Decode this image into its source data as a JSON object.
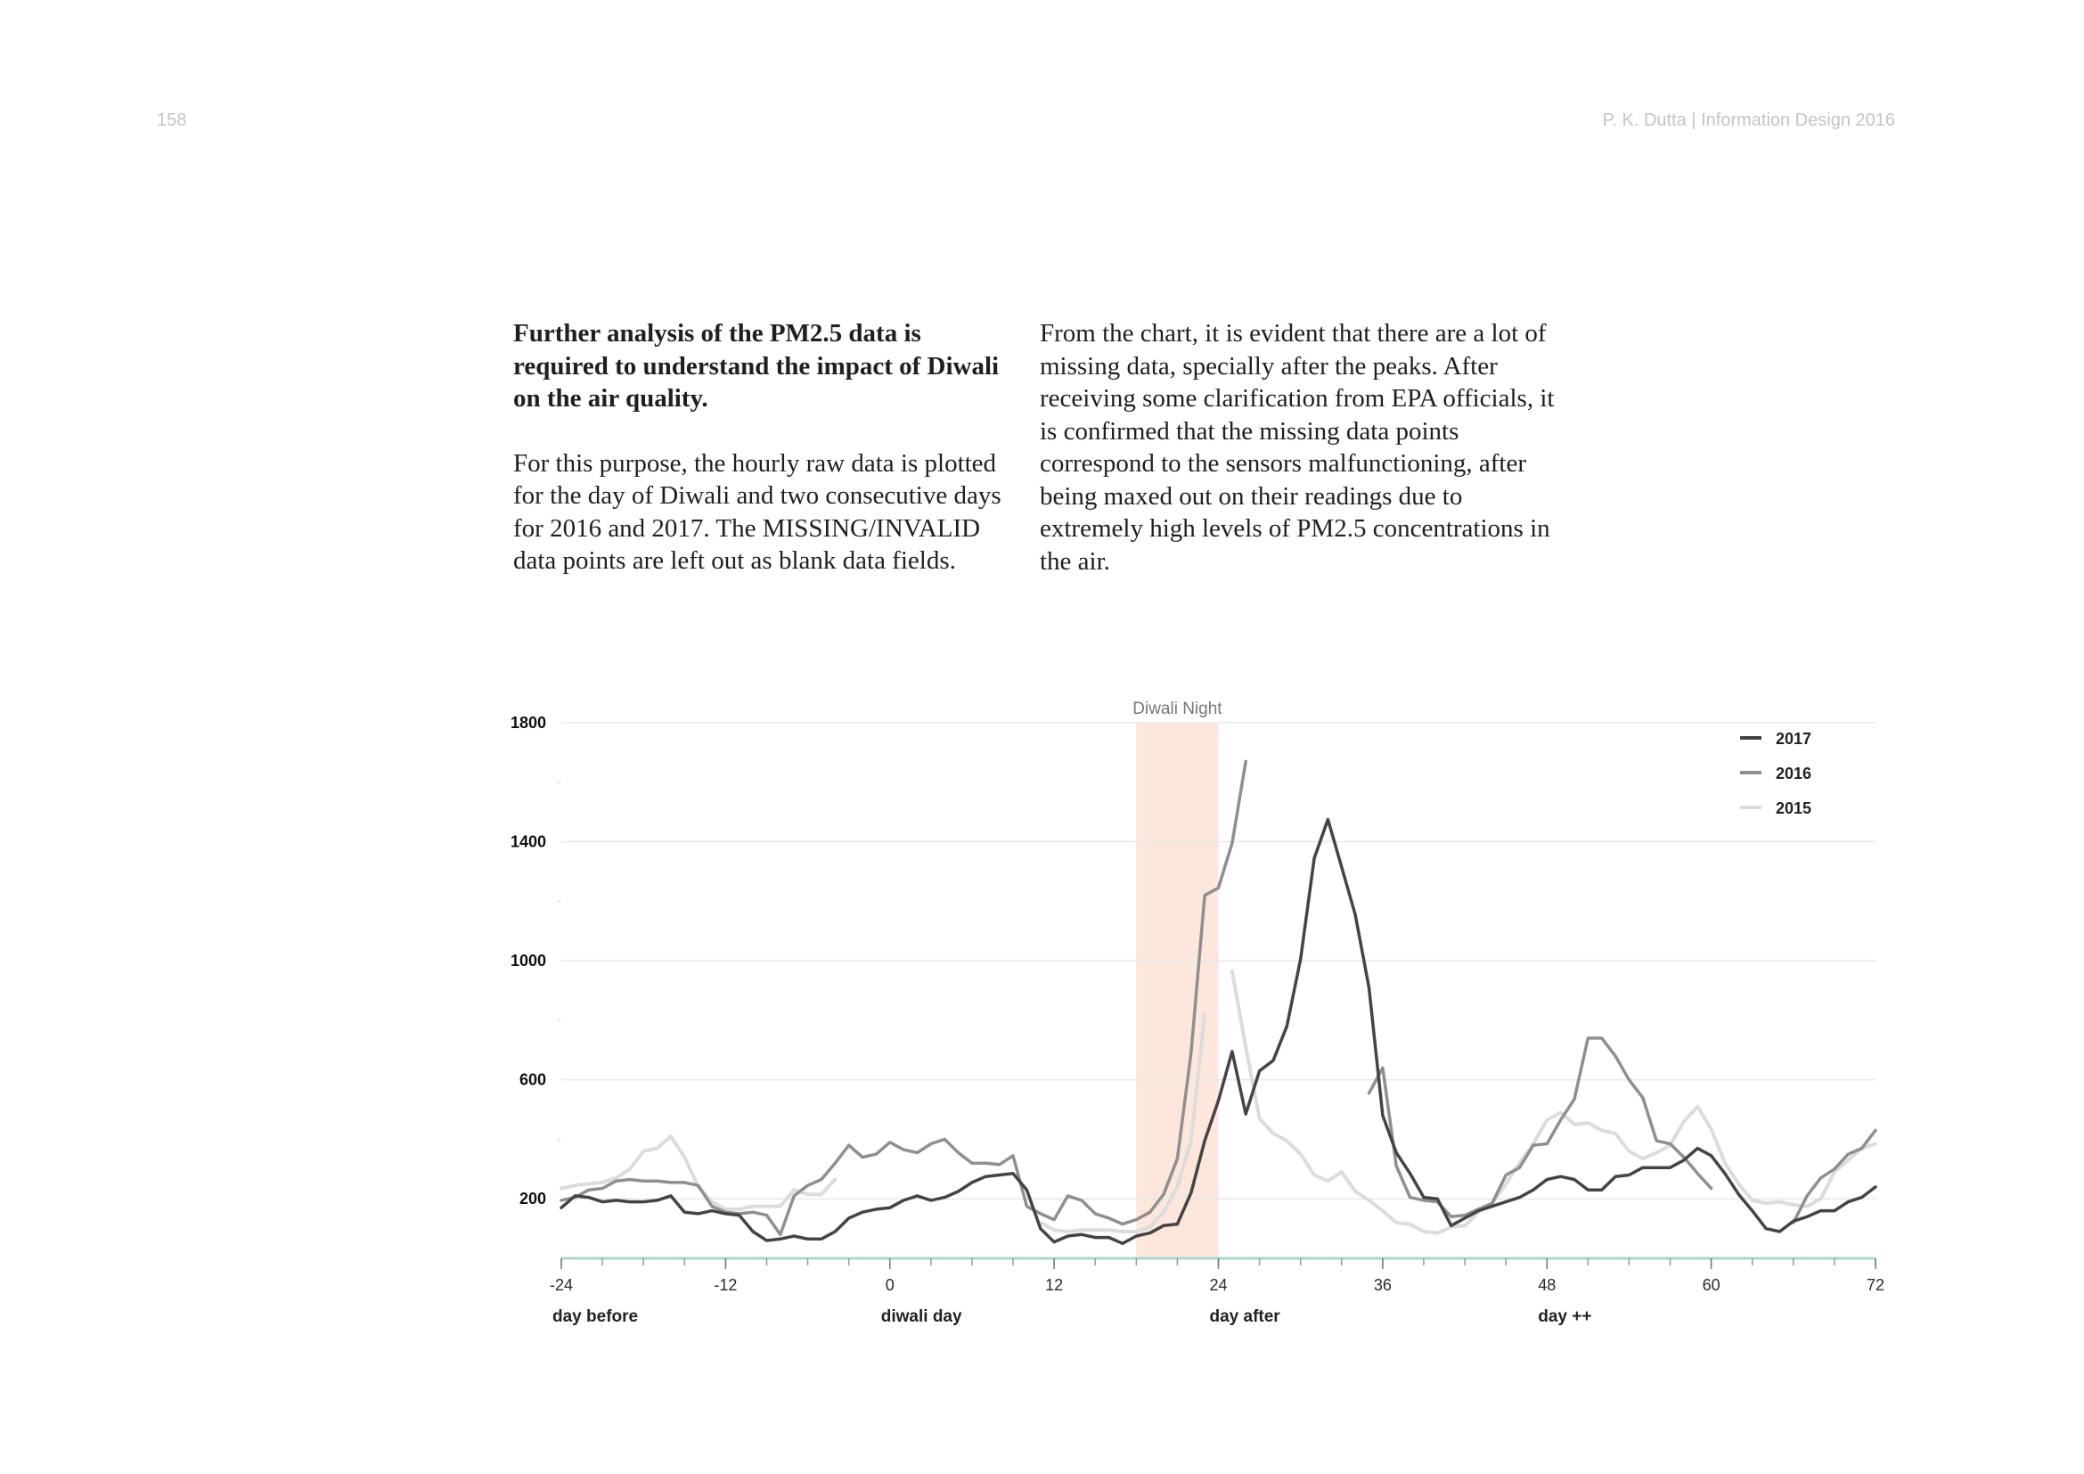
{
  "header": {
    "page_number": "158",
    "running_head": "P. K. Dutta | Information Design 2016"
  },
  "text": {
    "lead": "Further analysis of the PM2.5 data is required to understand the impact of Diwali on the air quality.",
    "left_para": "For this purpose, the hourly raw data is plotted for the day of Diwali and two consecutive days for 2016 and 2017. The MISSING/INVALID data points are left out as blank data fields.",
    "right_para": "From the chart, it is evident that there are a lot of missing data, specially after the peaks. After receiving some clarification from EPA officials, it is confirmed that the missing data points correspond to the sensors malfunctioning, after being maxed out on their readings due to extremely high levels of PM2.5 concentrations in the air."
  },
  "chart_data": {
    "type": "line",
    "title": "",
    "xlabel": "",
    "ylabel": "",
    "xlim": [
      -24,
      72
    ],
    "ylim": [
      0,
      1800
    ],
    "x_ticks": [
      -24,
      -12,
      0,
      12,
      24,
      36,
      48,
      60,
      72
    ],
    "y_ticks": [
      200,
      600,
      1000,
      1400,
      1800
    ],
    "day_labels": [
      {
        "x": -24,
        "label": "day before"
      },
      {
        "x": 0,
        "label": "diwali day"
      },
      {
        "x": 24,
        "label": "day after"
      },
      {
        "x": 48,
        "label": "day ++"
      }
    ],
    "highlight_band": {
      "x_start": 18,
      "x_end": 24,
      "label": "Diwali Night",
      "color": "#fde6dc"
    },
    "grid": true,
    "legend_position": "top-right",
    "series": [
      {
        "name": "2017",
        "color": "#444444",
        "segments": [
          [
            [
              -24,
              170
            ],
            [
              -23,
              210
            ],
            [
              -22,
              205
            ],
            [
              -21,
              190
            ],
            [
              -20,
              195
            ],
            [
              -19,
              190
            ],
            [
              -18,
              190
            ],
            [
              -17,
              195
            ],
            [
              -16,
              210
            ],
            [
              -15,
              155
            ],
            [
              -14,
              150
            ],
            [
              -13,
              160
            ],
            [
              -12,
              150
            ],
            [
              -11,
              145
            ],
            [
              -10,
              90
            ],
            [
              -9,
              60
            ],
            [
              -8,
              65
            ],
            [
              -7,
              75
            ],
            [
              -6,
              65
            ],
            [
              -5,
              65
            ],
            [
              -4,
              90
            ],
            [
              -3,
              135
            ],
            [
              -2,
              155
            ],
            [
              -1,
              165
            ],
            [
              0,
              170
            ],
            [
              1,
              195
            ],
            [
              2,
              210
            ],
            [
              3,
              195
            ],
            [
              4,
              205
            ],
            [
              5,
              225
            ],
            [
              6,
              255
            ],
            [
              7,
              275
            ],
            [
              8,
              280
            ],
            [
              9,
              285
            ],
            [
              10,
              230
            ],
            [
              11,
              100
            ],
            [
              12,
              55
            ],
            [
              13,
              75
            ],
            [
              14,
              80
            ],
            [
              15,
              70
            ],
            [
              16,
              70
            ],
            [
              17,
              50
            ],
            [
              18,
              75
            ],
            [
              19,
              85
            ],
            [
              20,
              110
            ],
            [
              21,
              115
            ],
            [
              22,
              220
            ],
            [
              23,
              395
            ],
            [
              24,
              530
            ],
            [
              25,
              695
            ],
            [
              26,
              485
            ],
            [
              27,
              630
            ],
            [
              28,
              665
            ],
            [
              29,
              780
            ],
            [
              30,
              1005
            ],
            [
              31,
              1345
            ],
            [
              32,
              1475
            ],
            [
              33,
              1315
            ],
            [
              34,
              1155
            ],
            [
              35,
              910
            ],
            [
              36,
              480
            ],
            [
              37,
              355
            ],
            [
              38,
              285
            ],
            [
              39,
              205
            ],
            [
              40,
              200
            ],
            [
              41,
              110
            ],
            [
              42,
              135
            ],
            [
              43,
              160
            ],
            [
              44,
              175
            ],
            [
              45,
              190
            ],
            [
              46,
              205
            ],
            [
              47,
              230
            ],
            [
              48,
              265
            ],
            [
              49,
              275
            ],
            [
              50,
              265
            ],
            [
              51,
              230
            ],
            [
              52,
              230
            ],
            [
              53,
              275
            ],
            [
              54,
              280
            ],
            [
              55,
              305
            ],
            [
              56,
              305
            ],
            [
              57,
              305
            ],
            [
              58,
              330
            ],
            [
              59,
              370
            ],
            [
              60,
              345
            ],
            [
              61,
              285
            ],
            [
              62,
              215
            ],
            [
              63,
              160
            ],
            [
              64,
              100
            ],
            [
              65,
              90
            ],
            [
              66,
              125
            ],
            [
              67,
              140
            ],
            [
              68,
              160
            ],
            [
              69,
              160
            ],
            [
              70,
              190
            ],
            [
              71,
              205
            ],
            [
              72,
              240
            ]
          ]
        ]
      },
      {
        "name": "2016",
        "color": "#8f8f8f",
        "segments": [
          [
            [
              -24,
              195
            ],
            [
              -23,
              205
            ],
            [
              -22,
              230
            ],
            [
              -21,
              235
            ],
            [
              -20,
              260
            ],
            [
              -19,
              265
            ],
            [
              -18,
              260
            ],
            [
              -17,
              260
            ],
            [
              -16,
              255
            ],
            [
              -15,
              255
            ],
            [
              -14,
              245
            ],
            [
              -13,
              175
            ],
            [
              -12,
              155
            ],
            [
              -11,
              150
            ],
            [
              -10,
              155
            ],
            [
              -9,
              145
            ],
            [
              -8,
              80
            ],
            [
              -7,
              210
            ],
            [
              -6,
              245
            ],
            [
              -5,
              265
            ],
            [
              -4,
              320
            ],
            [
              -3,
              380
            ],
            [
              -2,
              340
            ],
            [
              -1,
              350
            ],
            [
              0,
              390
            ],
            [
              1,
              365
            ],
            [
              2,
              355
            ],
            [
              3,
              385
            ],
            [
              4,
              400
            ],
            [
              5,
              355
            ],
            [
              6,
              320
            ],
            [
              7,
              320
            ],
            [
              8,
              315
            ],
            [
              9,
              345
            ],
            [
              10,
              175
            ],
            [
              11,
              150
            ],
            [
              12,
              130
            ],
            [
              13,
              210
            ],
            [
              14,
              195
            ],
            [
              15,
              150
            ],
            [
              16,
              135
            ],
            [
              17,
              115
            ],
            [
              18,
              130
            ],
            [
              19,
              155
            ],
            [
              20,
              215
            ],
            [
              21,
              335
            ],
            [
              22,
              690
            ],
            [
              23,
              1220
            ],
            [
              24,
              1245
            ],
            [
              25,
              1395
            ],
            [
              26,
              1670
            ]
          ],
          [
            [
              35,
              555
            ],
            [
              36,
              640
            ],
            [
              37,
              310
            ],
            [
              38,
              205
            ],
            [
              39,
              195
            ],
            [
              40,
              190
            ],
            [
              41,
              140
            ],
            [
              42,
              145
            ],
            [
              43,
              165
            ],
            [
              44,
              185
            ],
            [
              45,
              280
            ],
            [
              46,
              305
            ],
            [
              47,
              380
            ],
            [
              48,
              385
            ],
            [
              49,
              465
            ],
            [
              50,
              535
            ],
            [
              51,
              740
            ],
            [
              52,
              740
            ],
            [
              53,
              680
            ],
            [
              54,
              600
            ],
            [
              55,
              540
            ],
            [
              56,
              395
            ],
            [
              57,
              385
            ],
            [
              58,
              340
            ],
            [
              59,
              285
            ],
            [
              60,
              235
            ]
          ],
          [
            [
              66,
              120
            ],
            [
              67,
              210
            ],
            [
              68,
              270
            ],
            [
              69,
              300
            ],
            [
              70,
              350
            ],
            [
              71,
              370
            ],
            [
              72,
              430
            ]
          ]
        ]
      },
      {
        "name": "2015",
        "color": "#dcdcdc",
        "segments": [
          [
            [
              -24,
              235
            ],
            [
              -23,
              245
            ],
            [
              -22,
              250
            ],
            [
              -21,
              255
            ],
            [
              -20,
              270
            ],
            [
              -19,
              300
            ],
            [
              -18,
              360
            ],
            [
              -17,
              370
            ],
            [
              -16,
              410
            ],
            [
              -15,
              340
            ],
            [
              -14,
              240
            ],
            [
              -13,
              190
            ],
            [
              -12,
              165
            ],
            [
              -11,
              165
            ],
            [
              -10,
              175
            ],
            [
              -9,
              175
            ],
            [
              -8,
              175
            ],
            [
              -7,
              230
            ],
            [
              -6,
              215
            ],
            [
              -5,
              215
            ],
            [
              -4,
              265
            ]
          ],
          [
            [
              11,
              120
            ],
            [
              12,
              95
            ],
            [
              13,
              90
            ],
            [
              14,
              95
            ],
            [
              15,
              95
            ],
            [
              16,
              95
            ],
            [
              17,
              90
            ],
            [
              18,
              90
            ],
            [
              19,
              105
            ],
            [
              20,
              155
            ],
            [
              21,
              240
            ],
            [
              22,
              395
            ],
            [
              23,
              820
            ]
          ],
          [
            [
              25,
              965
            ],
            [
              26,
              710
            ],
            [
              27,
              470
            ],
            [
              28,
              420
            ],
            [
              29,
              395
            ],
            [
              30,
              350
            ],
            [
              31,
              280
            ],
            [
              32,
              260
            ],
            [
              33,
              290
            ],
            [
              34,
              225
            ],
            [
              35,
              195
            ],
            [
              36,
              160
            ],
            [
              37,
              120
            ],
            [
              38,
              115
            ],
            [
              39,
              90
            ],
            [
              40,
              85
            ],
            [
              41,
              105
            ],
            [
              42,
              110
            ],
            [
              43,
              155
            ],
            [
              44,
              185
            ],
            [
              45,
              250
            ],
            [
              46,
              320
            ],
            [
              47,
              385
            ],
            [
              48,
              465
            ],
            [
              49,
              490
            ],
            [
              50,
              450
            ],
            [
              51,
              455
            ],
            [
              52,
              430
            ],
            [
              53,
              420
            ],
            [
              54,
              360
            ],
            [
              55,
              335
            ],
            [
              56,
              355
            ],
            [
              57,
              380
            ],
            [
              58,
              460
            ],
            [
              59,
              510
            ],
            [
              60,
              435
            ],
            [
              61,
              320
            ],
            [
              62,
              250
            ],
            [
              63,
              195
            ],
            [
              64,
              185
            ],
            [
              65,
              190
            ],
            [
              66,
              180
            ],
            [
              67,
              175
            ],
            [
              68,
              200
            ],
            [
              69,
              290
            ],
            [
              70,
              330
            ],
            [
              71,
              370
            ],
            [
              72,
              385
            ]
          ]
        ]
      }
    ]
  }
}
